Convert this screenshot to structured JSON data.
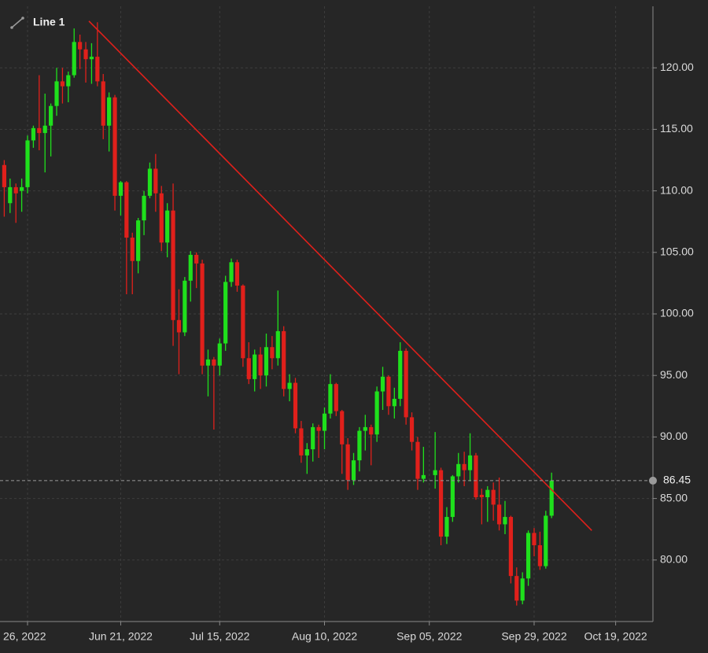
{
  "chart_data": {
    "type": "candlestick",
    "categories": [
      null,
      null,
      null,
      null,
      "26, 2022",
      null,
      null,
      null,
      null,
      null,
      null,
      null,
      null,
      null,
      null,
      null,
      null,
      null,
      null,
      null,
      "Jun 21, 2022",
      null,
      null,
      null,
      null,
      null,
      null,
      null,
      null,
      null,
      null,
      null,
      null,
      null,
      null,
      null,
      null,
      "Jul 15, 2022",
      null,
      null,
      null,
      null,
      null,
      null,
      null,
      null,
      null,
      null,
      null,
      null,
      null,
      null,
      null,
      null,
      null,
      "Aug 10, 2022",
      null,
      null,
      null,
      null,
      null,
      null,
      null,
      null,
      null,
      null,
      null,
      null,
      null,
      null,
      null,
      null,
      null,
      "Sep 05, 2022",
      null,
      null,
      null,
      null,
      null,
      null,
      null,
      null,
      null,
      null,
      null,
      null,
      null,
      null,
      null,
      null,
      null,
      "Sep 29, 2022",
      null,
      null,
      null,
      null,
      null,
      null,
      null,
      null,
      null,
      null,
      null,
      null,
      null,
      "Oct 19, 2022"
    ],
    "open": [
      112.1,
      109.0,
      110.3,
      110.0,
      110.3,
      114.1,
      115.1,
      114.7,
      115.3,
      116.9,
      118.9,
      118.5,
      119.4,
      122.1,
      121.5,
      120.7,
      120.9,
      118.9,
      115.3,
      117.6,
      109.6,
      110.7,
      106.2,
      104.3,
      107.6,
      109.6,
      111.8,
      109.8,
      105.8,
      108.4,
      99.5,
      98.5,
      102.7,
      104.8,
      104.1,
      95.8,
      96.3,
      95.8,
      97.6,
      102.6,
      104.2,
      102.3,
      96.4,
      94.7,
      96.7,
      95.0,
      97.3,
      96.4,
      98.6,
      93.9,
      94.4,
      90.7,
      88.5,
      89.0,
      90.8,
      90.5,
      91.9,
      94.3,
      92.1,
      89.4,
      86.5,
      88.1,
      90.5,
      90.8,
      90.2,
      93.7,
      94.9,
      92.5,
      93.1,
      97.0,
      91.6,
      89.6,
      86.6,
      null,
      86.9,
      87.3,
      81.9,
      83.5,
      86.8,
      87.8,
      87.3,
      88.5,
      85.3,
      85.1,
      85.7,
      84.5,
      82.9,
      83.5,
      78.7,
      76.7,
      78.5,
      82.2,
      81.2,
      79.5,
      83.6,
      null,
      null,
      null,
      null,
      null,
      null,
      null,
      null,
      null,
      null,
      null
    ],
    "high": [
      112.5,
      111.0,
      110.6,
      111.0,
      114.5,
      115.3,
      119.4,
      117.9,
      117.1,
      120.0,
      120.0,
      119.7,
      123.2,
      122.7,
      122.1,
      122.0,
      123.7,
      119.5,
      118.0,
      117.8,
      110.8,
      110.8,
      106.6,
      107.8,
      110.0,
      112.3,
      113.0,
      110.4,
      109.0,
      110.6,
      102.0,
      103.0,
      105.1,
      105.0,
      104.4,
      97.1,
      96.5,
      98.0,
      103.1,
      104.5,
      104.4,
      102.4,
      97.7,
      97.1,
      97.3,
      98.4,
      98.2,
      101.9,
      99.0,
      95.1,
      94.8,
      91.3,
      89.5,
      91.1,
      91.0,
      92.4,
      95.1,
      94.4,
      92.2,
      89.9,
      88.7,
      90.8,
      91.8,
      91.0,
      94.1,
      95.7,
      95.0,
      94.0,
      97.7,
      97.2,
      92.0,
      90.0,
      89.2,
      null,
      90.4,
      87.5,
      84.3,
      86.9,
      88.7,
      88.8,
      90.3,
      88.7,
      85.8,
      86.0,
      86.3,
      86.7,
      84.8,
      83.6,
      79.4,
      79.0,
      82.4,
      82.6,
      82.3,
      84.0,
      87.1,
      null,
      null,
      null,
      null,
      null,
      null,
      null,
      null,
      null,
      null,
      null
    ],
    "low": [
      107.9,
      108.2,
      107.4,
      108.3,
      109.8,
      113.5,
      113.3,
      111.5,
      112.8,
      116.1,
      117.1,
      117.2,
      119.2,
      119.9,
      118.8,
      118.7,
      118.5,
      114.2,
      113.2,
      108.4,
      108.0,
      101.6,
      101.6,
      103.3,
      106.4,
      109.4,
      108.3,
      105.1,
      104.6,
      97.4,
      95.1,
      98.2,
      101.0,
      102.1,
      95.1,
      93.3,
      90.6,
      95.0,
      97.0,
      102.2,
      101.8,
      95.7,
      94.3,
      93.7,
      93.9,
      94.1,
      95.5,
      95.8,
      93.3,
      92.9,
      90.3,
      87.9,
      87.0,
      88.0,
      88.3,
      89.0,
      91.5,
      91.7,
      87.0,
      85.7,
      86.1,
      87.2,
      88.9,
      87.7,
      89.6,
      92.2,
      91.8,
      91.5,
      92.5,
      91.0,
      88.9,
      85.7,
      86.3,
      null,
      85.8,
      81.2,
      81.3,
      83.1,
      86.3,
      86.0,
      86.4,
      84.9,
      82.9,
      83.1,
      83.2,
      82.4,
      82.1,
      78.1,
      76.3,
      76.4,
      77.9,
      80.3,
      79.2,
      79.3,
      83.4,
      null,
      null,
      null,
      null,
      null,
      null,
      null,
      null,
      null,
      null,
      null
    ],
    "close": [
      110.3,
      110.3,
      109.8,
      110.3,
      114.1,
      115.1,
      114.7,
      115.3,
      116.9,
      118.9,
      118.5,
      119.4,
      122.1,
      121.5,
      120.7,
      120.9,
      118.9,
      115.3,
      117.6,
      109.6,
      110.7,
      106.2,
      104.3,
      107.6,
      109.6,
      111.8,
      109.8,
      105.8,
      108.4,
      99.5,
      98.5,
      102.7,
      104.8,
      104.1,
      95.8,
      96.3,
      95.8,
      97.6,
      102.6,
      104.2,
      102.3,
      96.4,
      94.7,
      96.7,
      95.0,
      97.3,
      96.4,
      98.6,
      93.9,
      94.4,
      90.7,
      88.5,
      89.0,
      90.8,
      90.5,
      91.9,
      94.3,
      92.1,
      89.4,
      86.5,
      88.1,
      90.5,
      90.8,
      90.2,
      93.7,
      94.9,
      92.5,
      93.1,
      97.0,
      91.6,
      89.6,
      86.6,
      86.9,
      null,
      87.3,
      81.9,
      83.5,
      86.8,
      87.8,
      87.3,
      88.5,
      85.1,
      85.1,
      85.7,
      84.5,
      82.9,
      83.5,
      78.7,
      76.7,
      78.5,
      82.2,
      81.2,
      79.5,
      83.6,
      86.45,
      null,
      null,
      null,
      null,
      null,
      null,
      null,
      null,
      null,
      null,
      null
    ],
    "up_color": "#1fe01c",
    "down_color": "#e0201b",
    "ylim": [
      75,
      125
    ],
    "yticks": [
      {
        "value": 80,
        "label": "80.00"
      },
      {
        "value": 85,
        "label": "85.00"
      },
      {
        "value": 90,
        "label": "90.00"
      },
      {
        "value": 95,
        "label": "95.00"
      },
      {
        "value": 100,
        "label": "100.00"
      },
      {
        "value": 105,
        "label": "105.00"
      },
      {
        "value": 110,
        "label": "110.00"
      },
      {
        "value": 115,
        "label": "115.00"
      },
      {
        "value": 120,
        "label": "120.00"
      }
    ],
    "grid": true,
    "trendline": {
      "name": "Line 1",
      "color": "#e0201b",
      "values": [
        123.8,
        82.4
      ]
    }
  }
}
